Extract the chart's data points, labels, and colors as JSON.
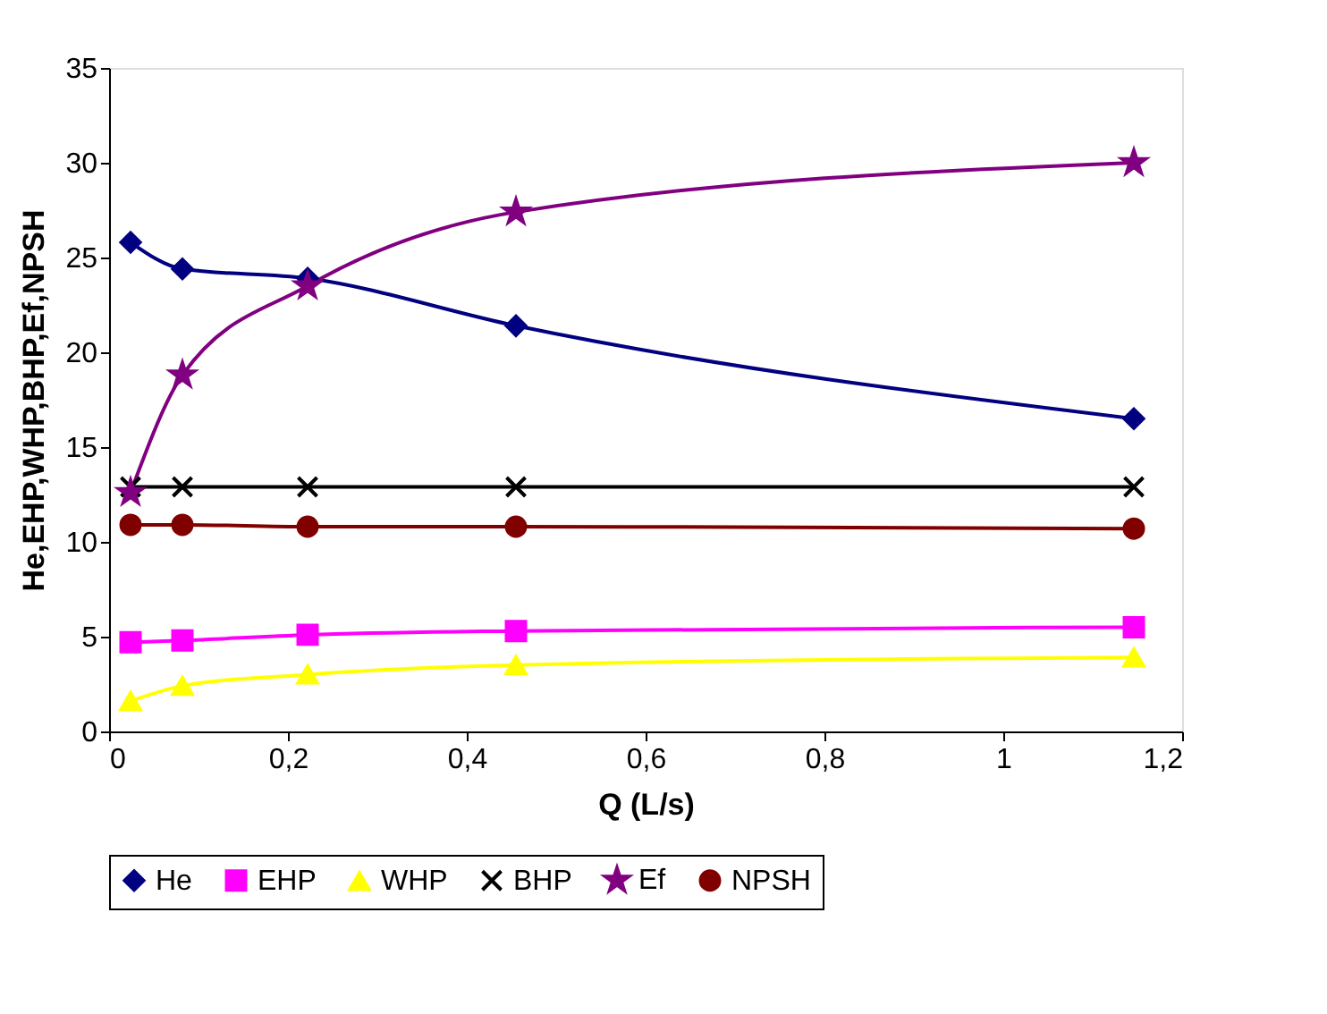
{
  "chart_data": {
    "type": "line",
    "xlabel": "Q (L/s)",
    "ylabel": "He,EHP,WHP,BHP,Ef,NPSH",
    "x": [
      0.024,
      0.082,
      0.222,
      0.455,
      1.146
    ],
    "series": [
      {
        "name": "He",
        "color": "#000080",
        "marker": "diamond",
        "values": [
          25.8,
          24.4,
          23.9,
          21.4,
          16.5
        ]
      },
      {
        "name": "EHP",
        "color": "#ff00ff",
        "marker": "square",
        "values": [
          4.7,
          4.8,
          5.1,
          5.3,
          5.5
        ]
      },
      {
        "name": "WHP",
        "color": "#ffff00",
        "marker": "triangle",
        "values": [
          1.6,
          2.4,
          3.0,
          3.5,
          3.9
        ]
      },
      {
        "name": "BHP",
        "color": "#000000",
        "marker": "cross",
        "values": [
          12.9,
          12.9,
          12.9,
          12.9,
          12.9
        ]
      },
      {
        "name": "Ef",
        "color": "#800080",
        "marker": "star",
        "values": [
          12.6,
          18.8,
          23.5,
          27.4,
          30.0
        ]
      },
      {
        "name": "NPSH",
        "color": "#800000",
        "marker": "circle",
        "values": [
          10.9,
          10.9,
          10.8,
          10.8,
          10.7
        ]
      }
    ],
    "xlim": [
      0,
      1.2
    ],
    "xticks": [
      0,
      {
        "value": 0.2,
        "label": "0,2"
      },
      {
        "value": 0.4,
        "label": "0,4"
      },
      {
        "value": 0.6,
        "label": "0,6"
      },
      {
        "value": 0.8,
        "label": "0,8"
      },
      1,
      {
        "value": 1.2,
        "label": "1,2"
      }
    ],
    "ylim": [
      0,
      35
    ],
    "yticks": [
      0,
      5,
      10,
      15,
      20,
      25,
      30,
      35
    ],
    "grid": false,
    "legend": "bottom",
    "line_style": "solid"
  }
}
